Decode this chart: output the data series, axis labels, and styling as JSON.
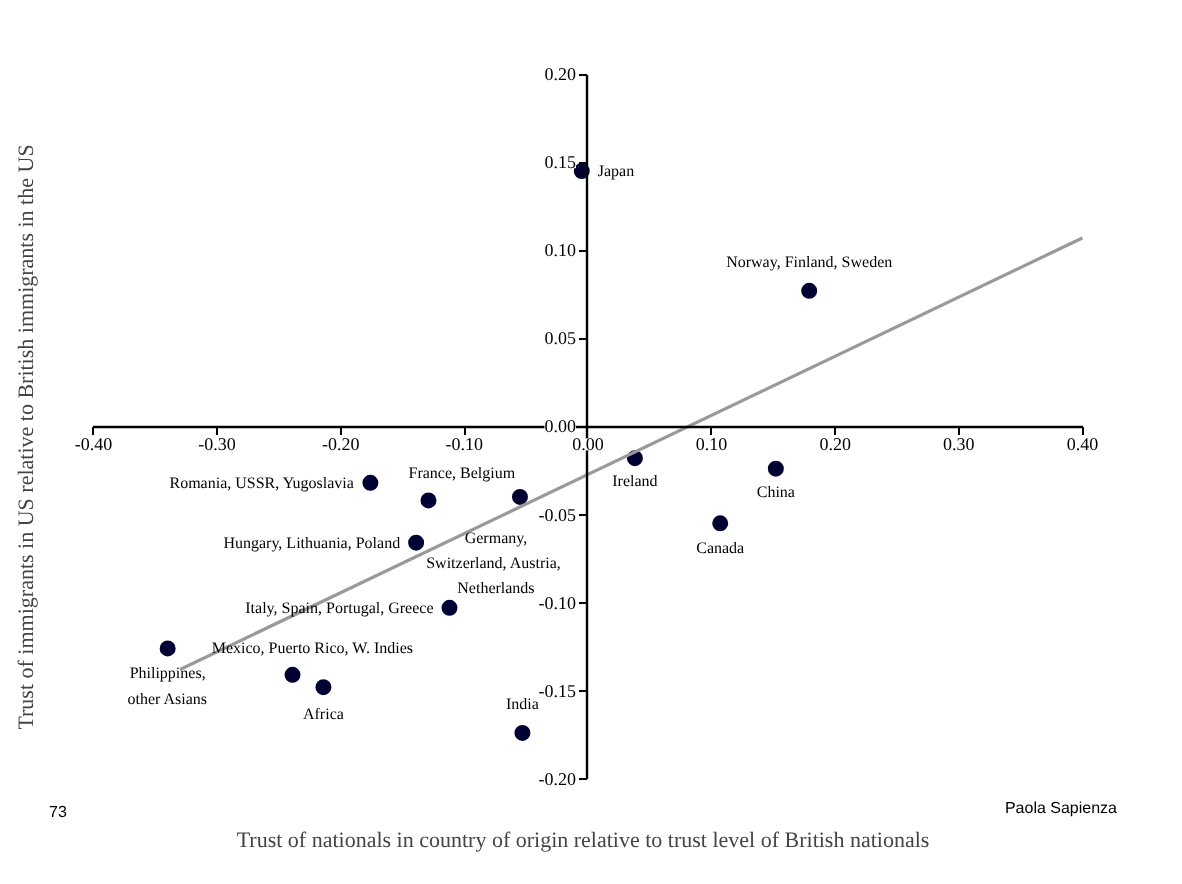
{
  "chart_data": {
    "type": "scatter",
    "xlabel": "Trust of nationals in country of origin relative to trust level of British nationals",
    "ylabel": "Trust of immigrants in US relative to British immigrants in the US",
    "xlim": [
      -0.4,
      0.4
    ],
    "ylim": [
      -0.2,
      0.2
    ],
    "xticks": [
      {
        "value": -0.4,
        "label": "-0.40"
      },
      {
        "value": -0.3,
        "label": "-0.30"
      },
      {
        "value": -0.2,
        "label": "-0.20"
      },
      {
        "value": -0.1,
        "label": "-0.10"
      },
      {
        "value": 0,
        "label": "0.00"
      },
      {
        "value": 0.1,
        "label": "0.10"
      },
      {
        "value": 0.2,
        "label": "0.20"
      },
      {
        "value": 0.3,
        "label": "0.30"
      },
      {
        "value": 0.4,
        "label": "0.40"
      }
    ],
    "yticks": [
      {
        "value": -0.2,
        "label": "-0.20"
      },
      {
        "value": -0.15,
        "label": "-0.15"
      },
      {
        "value": -0.1,
        "label": "-0.10"
      },
      {
        "value": -0.05,
        "label": "-0.05"
      },
      {
        "value": 0,
        "label": "0.00"
      },
      {
        "value": 0.05,
        "label": "0.05"
      },
      {
        "value": 0.1,
        "label": "0.10"
      },
      {
        "value": 0.15,
        "label": "0.15"
      },
      {
        "value": 0.2,
        "label": "0.20"
      }
    ],
    "grid": false,
    "series": [
      {
        "marker": "circle",
        "color": "#000033",
        "x": [
          -0.005,
          0.179,
          -0.176,
          -0.129,
          -0.055,
          -0.139,
          -0.112,
          0.038,
          0.152,
          0.107,
          -0.239,
          -0.34,
          -0.214,
          -0.053
        ],
        "values": [
          0.145,
          0.077,
          -0.032,
          -0.042,
          -0.04,
          -0.066,
          -0.103,
          -0.018,
          -0.024,
          -0.055,
          -0.141,
          -0.126,
          -0.148,
          -0.174
        ]
      },
      {
        "type": "line",
        "color": "#999999",
        "line_style": "solid",
        "x": [
          -0.33,
          0.4
        ],
        "values": [
          -0.138,
          0.107
        ]
      }
    ],
    "annotations": [
      {
        "text": "Japan",
        "x": -0.005,
        "y": 0.145
      },
      {
        "text": "Norway, Finland, Sweden",
        "x": 0.179,
        "y": 0.077
      },
      {
        "text": "Romania, USSR, Yugoslavia",
        "x": -0.176,
        "y": -0.032
      },
      {
        "text": "France, Belgium",
        "x": -0.129,
        "y": -0.042
      },
      {
        "text": "Germany,\nSwitzerland,  Austria,\nNetherlands",
        "x": -0.055,
        "y": -0.04
      },
      {
        "text": "Hungary, Lithuania, Poland",
        "x": -0.139,
        "y": -0.066
      },
      {
        "text": "Italy, Spain, Portugal, Greece",
        "x": -0.112,
        "y": -0.103
      },
      {
        "text": "Ireland",
        "x": 0.038,
        "y": -0.018
      },
      {
        "text": "China",
        "x": 0.152,
        "y": -0.024
      },
      {
        "text": "Canada",
        "x": 0.107,
        "y": -0.055
      },
      {
        "text": "Mexico, Puerto Rico, W. Indies",
        "x": -0.239,
        "y": -0.141
      },
      {
        "text": "Philippines,\nother Asians",
        "x": -0.34,
        "y": -0.126
      },
      {
        "text": "Africa",
        "x": -0.214,
        "y": -0.148
      },
      {
        "text": "India",
        "x": -0.053,
        "y": -0.174
      },
      "73",
      "Paola Sapienza"
    ]
  }
}
